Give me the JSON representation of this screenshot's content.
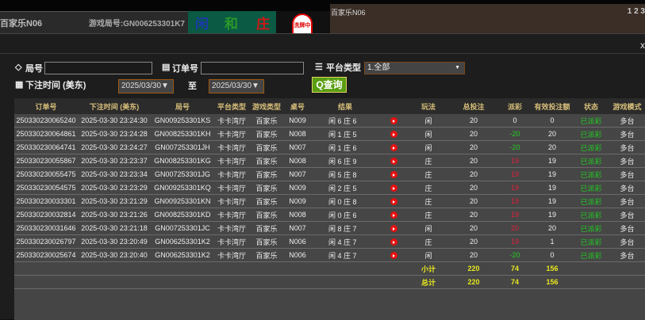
{
  "game_header": {
    "table_name": "百家乐N06",
    "round_label": "游戏局号:GN006253301K7",
    "bet_player": "闲",
    "bet_tie": "和",
    "bet_banker": "庄",
    "stamp": "洗牌中",
    "video_label": "百家乐N06",
    "video_numbers": "1 2 3"
  },
  "modal": {
    "close": "x"
  },
  "filters": {
    "round_label": "局号",
    "round_value": "",
    "order_label": "订单号",
    "order_value": "",
    "platform_label": "平台类型",
    "platform_value": "1.全部",
    "time_label": "下注时间 (美东)",
    "date_from": "2025/03/30▼",
    "to_label": "至",
    "date_to": "2025/03/30▼",
    "query_button": "查询"
  },
  "colors": {
    "accent_green": "#5a9e12",
    "header_gold": "#d8bf7a",
    "positive": "#22cc22",
    "negative": "#e0203a",
    "sum": "#e6e620"
  },
  "table": {
    "headers": [
      "订单号",
      "下注时间 (美东)",
      "局号",
      "平台类型",
      "游戏类型",
      "桌号",
      "结果",
      "",
      "玩法",
      "总投注",
      "派彩",
      "有效投注额",
      "状态",
      "游戏模式"
    ],
    "rows": [
      {
        "order": "250330230065240",
        "time": "2025-03-30 23:24:30",
        "round": "GN009253301KS",
        "platform": "卡卡湾厅",
        "game": "百家乐",
        "table": "N009",
        "result": "闲 6 庄 6",
        "play": "闲",
        "bet": "20",
        "payout": "0",
        "payout_color": "white",
        "valid": "0",
        "status": "已派彩",
        "mode": "多台"
      },
      {
        "order": "250330230064861",
        "time": "2025-03-30 23:24:28",
        "round": "GN008253301KH",
        "platform": "卡卡湾厅",
        "game": "百家乐",
        "table": "N008",
        "result": "闲 1 庄 5",
        "play": "闲",
        "bet": "20",
        "payout": "-20",
        "payout_color": "green",
        "valid": "20",
        "status": "已派彩",
        "mode": "多台"
      },
      {
        "order": "250330230064741",
        "time": "2025-03-30 23:24:27",
        "round": "GN007253301JH",
        "platform": "卡卡湾厅",
        "game": "百家乐",
        "table": "N007",
        "result": "闲 1 庄 6",
        "play": "闲",
        "bet": "20",
        "payout": "-20",
        "payout_color": "green",
        "valid": "20",
        "status": "已派彩",
        "mode": "多台"
      },
      {
        "order": "250330230055867",
        "time": "2025-03-30 23:23:37",
        "round": "GN008253301KG",
        "platform": "卡卡湾厅",
        "game": "百家乐",
        "table": "N008",
        "result": "闲 6 庄 9",
        "play": "庄",
        "bet": "20",
        "payout": "19",
        "payout_color": "red",
        "valid": "19",
        "status": "已派彩",
        "mode": "多台"
      },
      {
        "order": "250330230055475",
        "time": "2025-03-30 23:23:34",
        "round": "GN007253301JG",
        "platform": "卡卡湾厅",
        "game": "百家乐",
        "table": "N007",
        "result": "闲 5 庄 8",
        "play": "庄",
        "bet": "20",
        "payout": "19",
        "payout_color": "red",
        "valid": "19",
        "status": "已派彩",
        "mode": "多台"
      },
      {
        "order": "250330230054575",
        "time": "2025-03-30 23:23:29",
        "round": "GN009253301KQ",
        "platform": "卡卡湾厅",
        "game": "百家乐",
        "table": "N009",
        "result": "闲 2 庄 5",
        "play": "庄",
        "bet": "20",
        "payout": "19",
        "payout_color": "red",
        "valid": "19",
        "status": "已派彩",
        "mode": "多台"
      },
      {
        "order": "250330230033301",
        "time": "2025-03-30 23:21:29",
        "round": "GN009253301KN",
        "platform": "卡卡湾厅",
        "game": "百家乐",
        "table": "N009",
        "result": "闲 0 庄 8",
        "play": "庄",
        "bet": "20",
        "payout": "19",
        "payout_color": "red",
        "valid": "19",
        "status": "已派彩",
        "mode": "多台"
      },
      {
        "order": "250330230032814",
        "time": "2025-03-30 23:21:26",
        "round": "GN008253301KD",
        "platform": "卡卡湾厅",
        "game": "百家乐",
        "table": "N008",
        "result": "闲 0 庄 6",
        "play": "庄",
        "bet": "20",
        "payout": "19",
        "payout_color": "red",
        "valid": "19",
        "status": "已派彩",
        "mode": "多台"
      },
      {
        "order": "250330230031646",
        "time": "2025-03-30 23:21:18",
        "round": "GN007253301JC",
        "platform": "卡卡湾厅",
        "game": "百家乐",
        "table": "N007",
        "result": "闲 8 庄 7",
        "play": "闲",
        "bet": "20",
        "payout": "20",
        "payout_color": "red",
        "valid": "20",
        "status": "已派彩",
        "mode": "多台"
      },
      {
        "order": "250330230026797",
        "time": "2025-03-30 23:20:49",
        "round": "GN006253301K2",
        "platform": "卡卡湾厅",
        "game": "百家乐",
        "table": "N006",
        "result": "闲 4 庄 7",
        "play": "庄",
        "bet": "20",
        "payout": "19",
        "payout_color": "red",
        "valid": "1",
        "status": "已派彩",
        "mode": "多台"
      },
      {
        "order": "250330230025674",
        "time": "2025-03-30 23:20:40",
        "round": "GN006253301K2",
        "platform": "卡卡湾厅",
        "game": "百家乐",
        "table": "N006",
        "result": "闲 4 庄 7",
        "play": "闲",
        "bet": "20",
        "payout": "-20",
        "payout_color": "green",
        "valid": "0",
        "status": "已派彩",
        "mode": "多台"
      }
    ],
    "subtotal": {
      "label": "小计",
      "bet": "220",
      "payout": "74",
      "valid": "156"
    },
    "total": {
      "label": "总计",
      "bet": "220",
      "payout": "74",
      "valid": "156"
    }
  }
}
